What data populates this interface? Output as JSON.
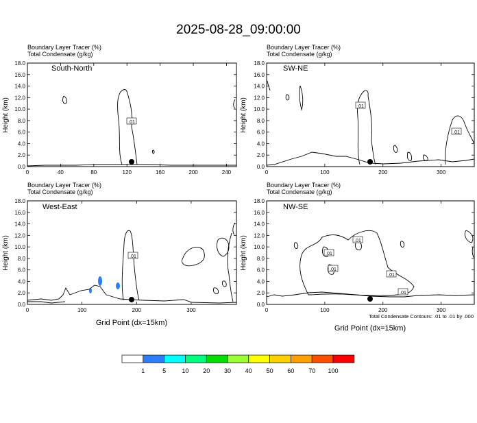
{
  "title": "2025-08-28_09:00:00",
  "panel_line1": "Boundary Layer Tracer   (%)",
  "panel_line2": "Total Condensate   (g/kg)",
  "ylabel": "Height (km)",
  "xlabel": "Grid Point (dx=15km)",
  "footnote": "Total Condensate Contours: .01 to .01 by .000",
  "contour_label": ".01",
  "colorbar": {
    "colors": [
      "#ffffff",
      "#2b7fff",
      "#00ffff",
      "#00ff7f",
      "#00e000",
      "#9aff33",
      "#ffff00",
      "#ffd000",
      "#ffa000",
      "#ff5000",
      "#ff0000"
    ],
    "labels": [
      "1",
      "5",
      "10",
      "20",
      "30",
      "40",
      "50",
      "60",
      "70",
      "100"
    ]
  },
  "chart_data": [
    {
      "type": "contour",
      "name": "South-North",
      "ylim": [
        0,
        18
      ],
      "xlim": [
        0,
        252
      ],
      "xticks": [
        "0",
        "40",
        "80",
        "120",
        "160",
        "200",
        "240"
      ],
      "yticks": [
        "0.0",
        "2.0",
        "4.0",
        "6.0",
        "8.0",
        "10.0",
        "12.0",
        "14.0",
        "16.0",
        "18.0"
      ],
      "marker_x": 127,
      "contour_labels": [
        {
          "text": ".01",
          "x": 127,
          "y": 7.9
        }
      ]
    },
    {
      "type": "contour",
      "name": "SW-NE",
      "ylim": [
        0,
        18
      ],
      "xlim": [
        0,
        357
      ],
      "xticks": [
        "0",
        "100",
        "200",
        "300"
      ],
      "yticks": [
        "0.0",
        "2.0",
        "4.0",
        "6.0",
        "8.0",
        "10.0",
        "12.0",
        "14.0",
        "16.0",
        "18.0"
      ],
      "marker_x": 176,
      "contour_labels": [
        {
          "text": ".01",
          "x": 168,
          "y": 10.6
        },
        {
          "text": ".01",
          "x": 332,
          "y": 6.2
        }
      ]
    },
    {
      "type": "contour",
      "name": "West-East",
      "ylim": [
        0,
        18
      ],
      "xlim": [
        0,
        383
      ],
      "xticks": [
        "0",
        "100",
        "200",
        "300"
      ],
      "yticks": [
        "0.0",
        "2.0",
        "4.0",
        "6.0",
        "8.0",
        "10.0",
        "12.0",
        "14.0",
        "16.0",
        "18.0"
      ],
      "marker_x": 190,
      "contour_labels": [
        {
          "text": ".01",
          "x": 195,
          "y": 8.5
        }
      ],
      "shaded": [
        {
          "level": "1-5",
          "x": 135,
          "y": 3.8
        },
        {
          "level": "1-5",
          "x": 166,
          "y": 3.2
        },
        {
          "level": "1-5",
          "x": 123,
          "y": 2.4
        }
      ]
    },
    {
      "type": "contour",
      "name": "NW-SE",
      "ylim": [
        0,
        18
      ],
      "xlim": [
        0,
        357
      ],
      "xticks": [
        "0",
        "100",
        "200",
        "300"
      ],
      "yticks": [
        "0.0",
        "2.0",
        "4.0",
        "6.0",
        "8.0",
        "10.0",
        "12.0",
        "14.0",
        "16.0",
        "18.0"
      ],
      "marker_x": 176,
      "contour_labels": [
        {
          "text": ".01",
          "x": 160,
          "y": 11.0
        },
        {
          "text": ".01",
          "x": 100,
          "y": 9.0
        },
        {
          "text": ".01",
          "x": 108,
          "y": 6.3
        },
        {
          "text": ".01",
          "x": 258,
          "y": 5.3
        },
        {
          "text": ".01",
          "x": 272,
          "y": 2.2
        }
      ]
    }
  ]
}
